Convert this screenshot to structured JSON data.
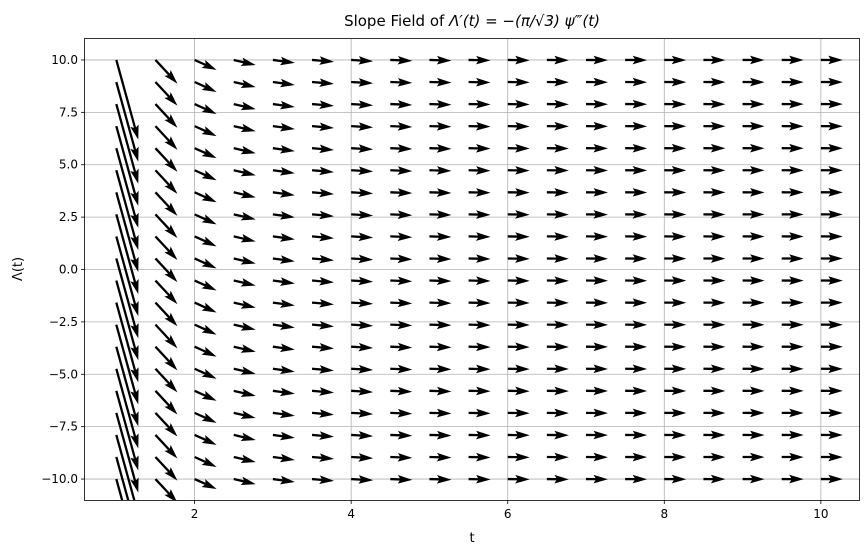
{
  "chart_data": {
    "type": "quiver",
    "title_prefix": "Slope Field of ",
    "title_math": "Λ′(t) = −(π/√3) ψ‴(t)",
    "xlabel": "t",
    "ylabel": "Λ(t)",
    "xlim": [
      0.6,
      10.5
    ],
    "ylim": [
      -11,
      11
    ],
    "grid": true,
    "xticks": [
      2,
      4,
      6,
      8,
      10
    ],
    "xtick_labels": [
      "2",
      "4",
      "6",
      "8",
      "10"
    ],
    "yticks": [
      -10,
      -7.5,
      -5,
      -2.5,
      0,
      2.5,
      5,
      7.5,
      10
    ],
    "ytick_labels": [
      "−10.0",
      "−7.5",
      "−5.0",
      "−2.5",
      "0.0",
      "2.5",
      "5.0",
      "7.5",
      "10.0"
    ],
    "field": {
      "t_start": 1.0,
      "t_stop": 10.5,
      "t_count": 20,
      "lambda_start": -10,
      "lambda_stop": 10,
      "lambda_count": 20,
      "slope_function": "-(pi/sqrt(3)) * 2/t^3",
      "arrow_color": "#000000"
    }
  }
}
